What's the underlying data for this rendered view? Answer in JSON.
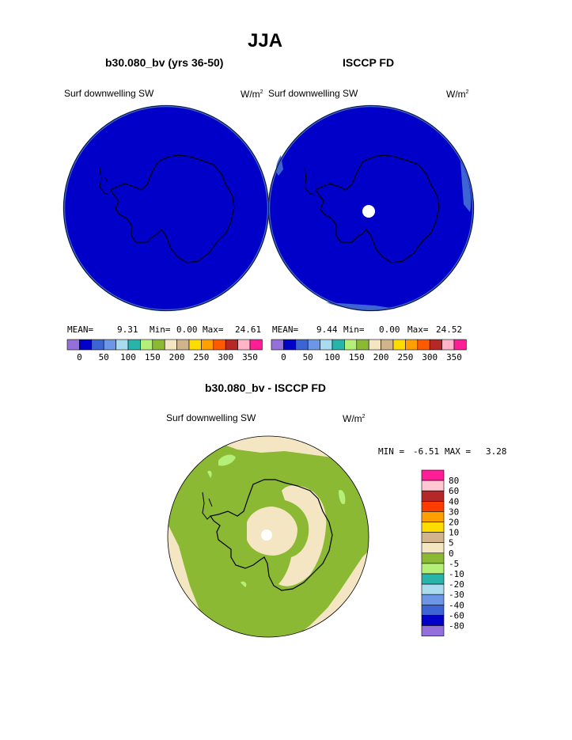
{
  "title": "JJA",
  "colors": {
    "dark_blue_fill": "#0000c8",
    "map_edge_blue": "#3e64d4",
    "green": "#8cb933",
    "tan": "#f5e6c3",
    "coast": "#000000"
  },
  "panels": {
    "left": {
      "title": "b30.080_bv (yrs 36-50)",
      "variable": "Surf downwelling SW",
      "units_base": "W/m",
      "units_exp": "2",
      "stats": {
        "mean_label": "MEAN=",
        "mean": "9.31",
        "min_label": "Min=",
        "min": "0.00",
        "max_label": "Max=",
        "max": "24.61"
      }
    },
    "right": {
      "title": "ISCCP FD",
      "variable": "Surf downwelling SW",
      "units_base": "W/m",
      "units_exp": "2",
      "stats": {
        "mean_label": "MEAN=",
        "mean": "9.44",
        "min_label": "Min=",
        "min": "0.00",
        "max_label": "Max=",
        "max": "24.52"
      }
    },
    "diff": {
      "title": "b30.080_bv - ISCCP FD",
      "variable": "Surf downwelling SW",
      "units_base": "W/m",
      "units_exp": "2",
      "min_label": "MIN =",
      "min": "-6.51",
      "max_label": "MAX =",
      "max": "3.28"
    }
  },
  "colorbar_horizontal": {
    "colors": [
      "#9370db",
      "#0000c8",
      "#3c64d2",
      "#6e96e6",
      "#aadcf0",
      "#28b4aa",
      "#b4f078",
      "#8cb933",
      "#f5e6c3",
      "#d2b48c",
      "#ffdc00",
      "#ffa000",
      "#ff5a00",
      "#b42828",
      "#ffb4c8",
      "#ff1e96"
    ],
    "labels": [
      "0",
      "50",
      "100",
      "150",
      "200",
      "250",
      "300",
      "350"
    ]
  },
  "colorbar_vertical": {
    "colors_top_to_bottom": [
      "#ff1e96",
      "#ffc8d2",
      "#b42828",
      "#ff3c00",
      "#ffa000",
      "#ffdc00",
      "#d2b48c",
      "#f5e6c3",
      "#8cb933",
      "#b4f078",
      "#28b4aa",
      "#aadcf0",
      "#6e96e6",
      "#3c64d2",
      "#0000c8",
      "#9370db"
    ],
    "labels": [
      "80",
      "60",
      "40",
      "30",
      "20",
      "10",
      "5",
      "0",
      "-5",
      "-10",
      "-20",
      "-30",
      "-40",
      "-60",
      "-80"
    ]
  }
}
